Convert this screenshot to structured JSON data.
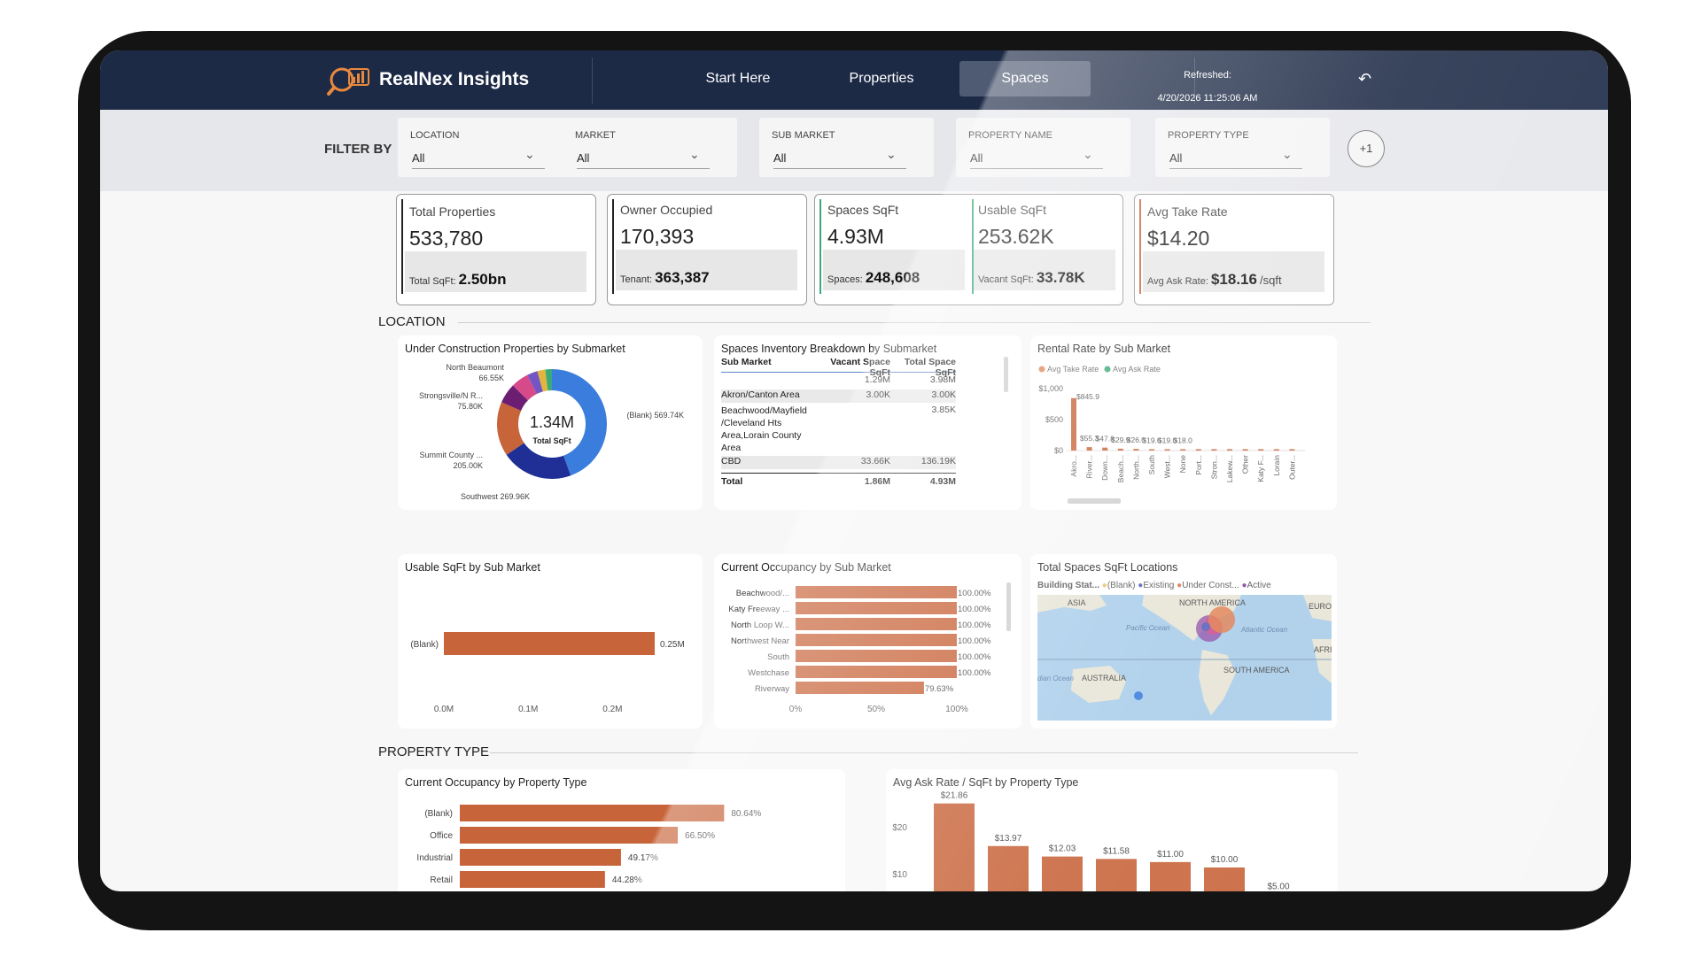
{
  "app": {
    "name": "RealNex Insights"
  },
  "nav": {
    "items": [
      "Start Here",
      "Properties",
      "Spaces"
    ],
    "active": "Spaces"
  },
  "refresh": {
    "label": "Refreshed:",
    "timestamp": "4/20/2026 11:25:06 AM"
  },
  "filters": {
    "label": "FILTER BY",
    "items": [
      {
        "label": "LOCATION",
        "value": "All"
      },
      {
        "label": "MARKET",
        "value": "All"
      },
      {
        "label": "SUB MARKET",
        "value": "All"
      },
      {
        "label": "PROPERTY NAME",
        "value": "All"
      },
      {
        "label": "PROPERTY TYPE",
        "value": "All"
      }
    ],
    "more": "+1"
  },
  "kpis": {
    "total_properties": {
      "title": "Total Properties",
      "value": "533,780",
      "sub_label": "Total SqFt:",
      "sub_value": "2.50bn"
    },
    "owner_occupied": {
      "title": "Owner Occupied",
      "value": "170,393",
      "sub_label": "Tenant:",
      "sub_value": "363,387"
    },
    "spaces_sqft": {
      "title": "Spaces SqFt",
      "value": "4.93M",
      "sub_label": "Spaces:",
      "sub_value": "248,608"
    },
    "usable_sqft": {
      "title": "Usable SqFt",
      "value": "253.62K",
      "sub_label": "Vacant SqFt:",
      "sub_value": "33.78K"
    },
    "avg_take_rate": {
      "title": "Avg Take Rate",
      "value": "$14.20",
      "sub_label": "Avg Ask Rate:",
      "sub_value": "$18.16",
      "sub_unit": "/sqft"
    }
  },
  "sections": {
    "location": "LOCATION",
    "property_type": "PROPERTY TYPE"
  },
  "colors": {
    "bar": "#c8643a",
    "navy": "#1d2a46"
  },
  "chart_data": [
    {
      "id": "donut",
      "type": "pie",
      "title": "Under Construction Properties by Submarket",
      "center_value": "1.34M",
      "center_label": "Total SqFt",
      "slices": [
        {
          "label": "(Blank)",
          "value_label": "569.74K",
          "value": 569.74,
          "color": "#3a7ddc"
        },
        {
          "label": "Southwest",
          "value_label": "269.96K",
          "value": 269.96,
          "color": "#1f2f96"
        },
        {
          "label": "Summit County ...",
          "value_label": "205.00K",
          "value": 205.0,
          "color": "#c8643a"
        },
        {
          "label": "Strongsville/N R...",
          "value_label": "75.80K",
          "value": 75.8,
          "color": "#6b1e72"
        },
        {
          "label": "North Beaumont",
          "value_label": "66.55K",
          "value": 66.55,
          "color": "#d64a8a"
        },
        {
          "label": "",
          "value_label": "",
          "value": 40,
          "color": "#7356c4"
        },
        {
          "label": "",
          "value_label": "",
          "value": 30,
          "color": "#e3b53c"
        },
        {
          "label": "",
          "value_label": "",
          "value": 25,
          "color": "#3aaa7a"
        }
      ]
    },
    {
      "id": "inventory",
      "type": "table",
      "title": "Spaces Inventory Breakdown by Submarket",
      "columns": [
        "Sub Market",
        "Vacant Space SqFt",
        "Total Space SqFt"
      ],
      "rows": [
        [
          "",
          "1.29M",
          "3.98M"
        ],
        [
          "Akron/Canton Area",
          "3.00K",
          "3.00K"
        ],
        [
          "Beachwood/Mayfield /Cleveland Hts Area,Lorain County Area",
          "",
          "3.85K"
        ],
        [
          "CBD",
          "33.66K",
          "136.19K"
        ]
      ],
      "total": [
        "Total",
        "1.86M",
        "4.93M"
      ]
    },
    {
      "id": "rental",
      "type": "bar",
      "title": "Rental Rate by Sub Market",
      "legend": [
        "Avg Take Rate",
        "Avg Ask Rate"
      ],
      "legend_colors": [
        "#e08a5c",
        "#3aaa7a"
      ],
      "categories": [
        "Akro...",
        "River...",
        "Down...",
        "Beach...",
        "North...",
        "South",
        "West...",
        "None",
        "Port...",
        "Stron...",
        "Lakew...",
        "Other",
        "Katy F...",
        "Lorain",
        "Outer..."
      ],
      "values": [
        845.9,
        55.3,
        47.8,
        29.9,
        26.0,
        19.6,
        19.0,
        18.0,
        12,
        10,
        9,
        8,
        7,
        6,
        5
      ],
      "data_labels": [
        "$845.9",
        "$55.3",
        "$47.8",
        "$29.9",
        "$26.0",
        "$19.6",
        "$19.0",
        "$18.0",
        "",
        "",
        "",
        "",
        "",
        "",
        ""
      ],
      "yticks": [
        "$1,000",
        "$500",
        "$0"
      ],
      "ylim": [
        0,
        1000
      ]
    },
    {
      "id": "usable",
      "type": "bar",
      "title": "Usable SqFt by Sub Market",
      "categories": [
        "(Blank)"
      ],
      "values": [
        0.25
      ],
      "data_labels": [
        "0.25M"
      ],
      "xticks": [
        "0.0M",
        "0.1M",
        "0.2M"
      ],
      "xlim": [
        0,
        0.25
      ]
    },
    {
      "id": "occ_sub",
      "type": "bar",
      "title": "Current Occupancy by Sub Market",
      "categories": [
        "Beachwood/...",
        "Katy Freeway ...",
        "North Loop W...",
        "Northwest Near",
        "South",
        "Westchase",
        "Riverway"
      ],
      "values": [
        100,
        100,
        100,
        100,
        100,
        100,
        79.63
      ],
      "data_labels": [
        "100.00%",
        "100.00%",
        "100.00%",
        "100.00%",
        "100.00%",
        "100.00%",
        "79.63%"
      ],
      "xticks": [
        "0%",
        "50%",
        "100%"
      ],
      "xlim": [
        0,
        100
      ]
    },
    {
      "id": "occ_type",
      "type": "bar",
      "title": "Current Occupancy by Property Type",
      "categories": [
        "(Blank)",
        "Office",
        "Industrial",
        "Retail"
      ],
      "values": [
        80.64,
        66.5,
        49.17,
        44.28
      ],
      "data_labels": [
        "80.64%",
        "66.50%",
        "49.17%",
        "44.28%"
      ],
      "xlim": [
        0,
        100
      ]
    },
    {
      "id": "ask_type",
      "type": "bar",
      "title": "Avg Ask Rate / SqFt by Property Type",
      "values": [
        21.86,
        13.97,
        12.03,
        11.58,
        11.0,
        10.0,
        5.0
      ],
      "data_labels": [
        "$21.86",
        "$13.97",
        "$12.03",
        "$11.58",
        "$11.00",
        "$10.00",
        "$5.00"
      ],
      "yticks": [
        "$20",
        "$10"
      ],
      "ylim": [
        0,
        25
      ]
    }
  ],
  "map": {
    "title": "Total Spaces SqFt Locations",
    "legend_title": "Building Stat...",
    "legend": [
      {
        "label": "(Blank)",
        "color": "#e8c36a"
      },
      {
        "label": "Existing",
        "color": "#5b5fb8"
      },
      {
        "label": "Under Const...",
        "color": "#e07a4a"
      },
      {
        "label": "Active",
        "color": "#8a3fa0"
      }
    ],
    "labels": [
      "ASIA",
      "NORTH AMERICA",
      "EUROP",
      "Pacific Ocean",
      "Atlantic Ocean",
      "AFRIC",
      "dian Ocean",
      "AUSTRALIA",
      "SOUTH AMERICA"
    ]
  }
}
